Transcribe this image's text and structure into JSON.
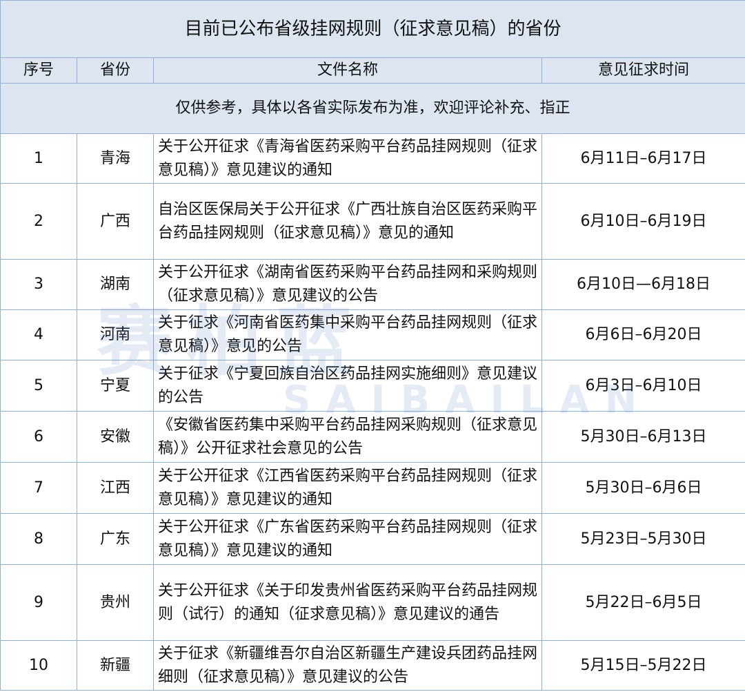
{
  "title": "目前已公布省级挂网规则（征求意见稿）的省份",
  "headers": [
    "序号",
    "省份",
    "文件名称",
    "意见征求时间"
  ],
  "note": "仅供参考，具体以各省实际发布为准，欢迎评论补充、指正",
  "rows": [
    {
      "no": "1",
      "province": "青海",
      "doc": "关于公开征求《青海省医药采购平台药品挂网规则（征求意见稿）》意见建议的通知",
      "period": "6月11日–6月17日"
    },
    {
      "no": "2",
      "province": "广西",
      "doc": "自治区医保局关于公开征求《广西壮族自治区医药采购平台药品挂网规则（征求意见稿）》意见的通知",
      "period": "6月10日–6月19日"
    },
    {
      "no": "3",
      "province": "湖南",
      "doc": "关于公开征求《湖南省医药采购平台药品挂网和采购规则（征求意见稿）》意见建议的公告",
      "period": "6月10日—6月18日"
    },
    {
      "no": "4",
      "province": "河南",
      "doc": "关于征求《河南省医药集中采购平台药品挂网规则（征求意见稿）》意见的公告",
      "period": "6月6日–6月20日"
    },
    {
      "no": "5",
      "province": "宁夏",
      "doc": "关于征求《宁夏回族自治区药品挂网实施细则》意见建议的公告",
      "period": "6月3日–6月10日"
    },
    {
      "no": "6",
      "province": "安徽",
      "doc": "《安徽省医药集中采购平台药品挂网采购规则（征求意见稿）》公开征求社会意见的公告",
      "period": "5月30日–6月13日"
    },
    {
      "no": "7",
      "province": "江西",
      "doc": "关于公开征求《江西省医药采购平台药品挂网规则（征求意见稿）》意见建议的通知",
      "period": "5月30日–6月6日"
    },
    {
      "no": "8",
      "province": "广东",
      "doc": "关于公开征求《广东省医药采购平台药品挂网规则（征求意见稿）》意见建议的通知",
      "period": "5月23日–5月30日"
    },
    {
      "no": "9",
      "province": "贵州",
      "doc": "关于公开征求《关于印发贵州省医药采购平台药品挂网规则（试行）的通知（征求意见稿）》意见建议的通告",
      "period": "5月22日–6月5日"
    },
    {
      "no": "10",
      "province": "新疆",
      "doc": "关于征求《新疆维吾尔自治区新疆生产建设兵团药品挂网细则（征求意见稿）》意见建议的公告",
      "period": "5月15日–5月22日"
    }
  ],
  "watermark": {
    "cn": "赛柏蓝",
    "en": "SAIBAILAN"
  },
  "colors": {
    "header_bg": "#dde6f0",
    "border": "#8fb0dc"
  }
}
